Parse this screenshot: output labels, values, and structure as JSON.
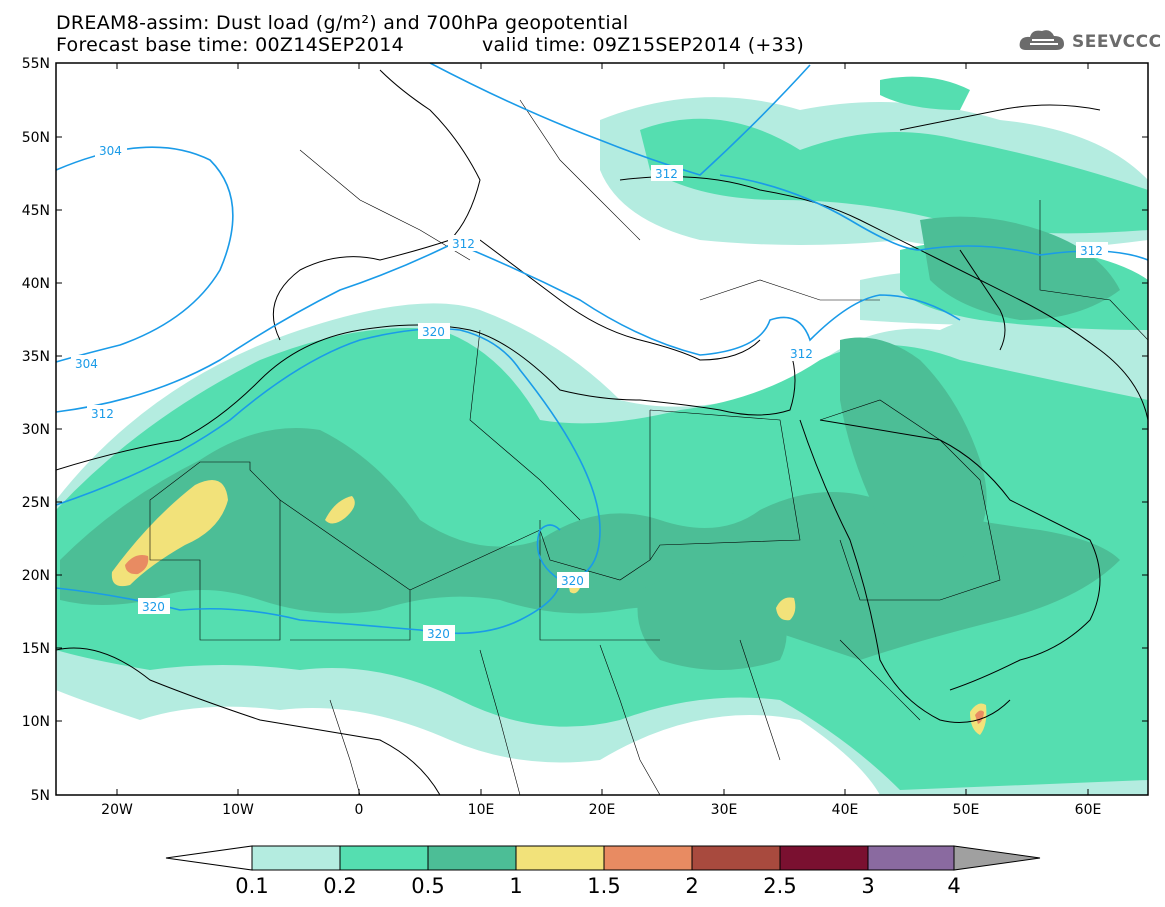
{
  "title": {
    "line1": "DREAM8-assim: Dust load (g/m²) and 700hPa geopotential",
    "base_time_label": "Forecast base time: 00Z14SEP2014",
    "valid_time_label": "valid time: 09Z15SEP2014 (+33)"
  },
  "logo": {
    "text": "SEEVCCC",
    "icon": "cloud-icon"
  },
  "axes": {
    "lat_labels": [
      "55N",
      "50N",
      "45N",
      "40N",
      "35N",
      "30N",
      "25N",
      "20N",
      "15N",
      "10N",
      "5N"
    ],
    "lon_labels": [
      "20W",
      "10W",
      "0",
      "10E",
      "20E",
      "30E",
      "40E",
      "50E",
      "60E"
    ]
  },
  "contour_labels": {
    "c304a": "304",
    "c304b": "304",
    "c312a": "312",
    "c312b": "312",
    "c312c": "312",
    "c312d": "312",
    "c312e": "312",
    "c320a": "320",
    "c320b": "320",
    "c320c": "320"
  },
  "colorbar": {
    "labels": [
      "0.1",
      "0.2",
      "0.5",
      "1",
      "1.5",
      "2",
      "2.5",
      "3",
      "4"
    ],
    "colors": [
      "#b4ece0",
      "#55deb0",
      "#4cbe96",
      "#f2e27a",
      "#e88b62",
      "#a84a3e",
      "#7a1030",
      "#8a6aa0"
    ]
  },
  "colors": {
    "contour": "#1a9be8",
    "border": "#000000"
  }
}
